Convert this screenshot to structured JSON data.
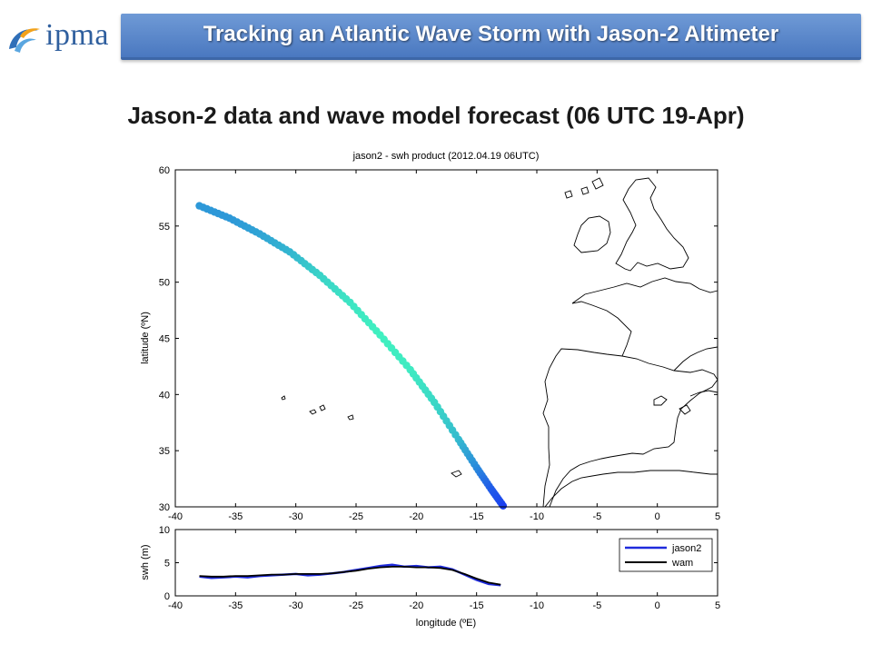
{
  "header": {
    "logo_text": "ipma",
    "banner_title": "Tracking an Atlantic Wave Storm with Jason-2 Altimeter"
  },
  "slide": {
    "title": "Jason-2 data and wave model forecast (06 UTC 19-Apr)"
  },
  "chart_data": [
    {
      "type": "scatter",
      "title": "jason2 - swh product (2012.04.19 06UTC)",
      "xlabel": "",
      "ylabel": "latitude (ºN)",
      "xlim": [
        -40,
        5
      ],
      "ylim": [
        30,
        60
      ],
      "xticks": [
        "-40",
        "-35",
        "-30",
        "-25",
        "-20",
        "-15",
        "-10",
        "-5",
        "0",
        "5"
      ],
      "yticks": [
        "30",
        "35",
        "40",
        "45",
        "50",
        "55",
        "60"
      ],
      "track": {
        "lon": [
          -38.0,
          -35.5,
          -33.0,
          -30.5,
          -28.0,
          -25.5,
          -23.0,
          -20.5,
          -18.5,
          -16.5,
          -15.0,
          -13.8,
          -12.8
        ],
        "lat": [
          56.8,
          55.7,
          54.3,
          52.7,
          50.6,
          48.2,
          45.3,
          42.2,
          39.3,
          36.0,
          33.5,
          31.6,
          30.1
        ],
        "swh": [
          3.0,
          3.0,
          3.2,
          3.5,
          4.0,
          4.3,
          4.5,
          4.4,
          4.1,
          3.6,
          2.8,
          2.0,
          1.6
        ]
      },
      "colors": {
        "map": "#000000",
        "track_low": "#1a3ff0",
        "track_high": "#40f0c0"
      }
    },
    {
      "type": "line",
      "title": "",
      "xlabel": "longitude (ºE)",
      "ylabel": "swh (m)",
      "xlim": [
        -40,
        5
      ],
      "ylim": [
        0,
        10
      ],
      "xticks": [
        "-40",
        "-35",
        "-30",
        "-25",
        "-20",
        "-15",
        "-10",
        "-5",
        "0",
        "5"
      ],
      "yticks": [
        "0",
        "5",
        "10"
      ],
      "legend": "top-right",
      "series": [
        {
          "name": "jason2",
          "color": "#1f2bdc",
          "x": [
            -38,
            -37,
            -36,
            -35,
            -34,
            -33,
            -32,
            -31,
            -30,
            -29,
            -28,
            -27,
            -26,
            -25,
            -24,
            -23,
            -22,
            -21,
            -20,
            -19,
            -18,
            -17,
            -16,
            -15,
            -14,
            -13
          ],
          "y": [
            2.9,
            2.7,
            2.8,
            2.9,
            2.8,
            3.0,
            3.1,
            3.2,
            3.3,
            3.1,
            3.2,
            3.4,
            3.6,
            3.9,
            4.2,
            4.5,
            4.7,
            4.4,
            4.5,
            4.3,
            4.4,
            4.0,
            3.2,
            2.4,
            1.8,
            1.6
          ]
        },
        {
          "name": "wam",
          "color": "#000000",
          "x": [
            -38,
            -37,
            -36,
            -35,
            -34,
            -33,
            -32,
            -31,
            -30,
            -29,
            -28,
            -27,
            -26,
            -25,
            -24,
            -23,
            -22,
            -21,
            -20,
            -19,
            -18,
            -17,
            -16,
            -15,
            -14,
            -13
          ],
          "y": [
            3.0,
            2.9,
            2.9,
            3.0,
            3.0,
            3.1,
            3.2,
            3.2,
            3.3,
            3.3,
            3.3,
            3.4,
            3.6,
            3.8,
            4.1,
            4.3,
            4.4,
            4.4,
            4.3,
            4.3,
            4.2,
            3.9,
            3.3,
            2.6,
            2.0,
            1.7
          ]
        }
      ]
    }
  ]
}
